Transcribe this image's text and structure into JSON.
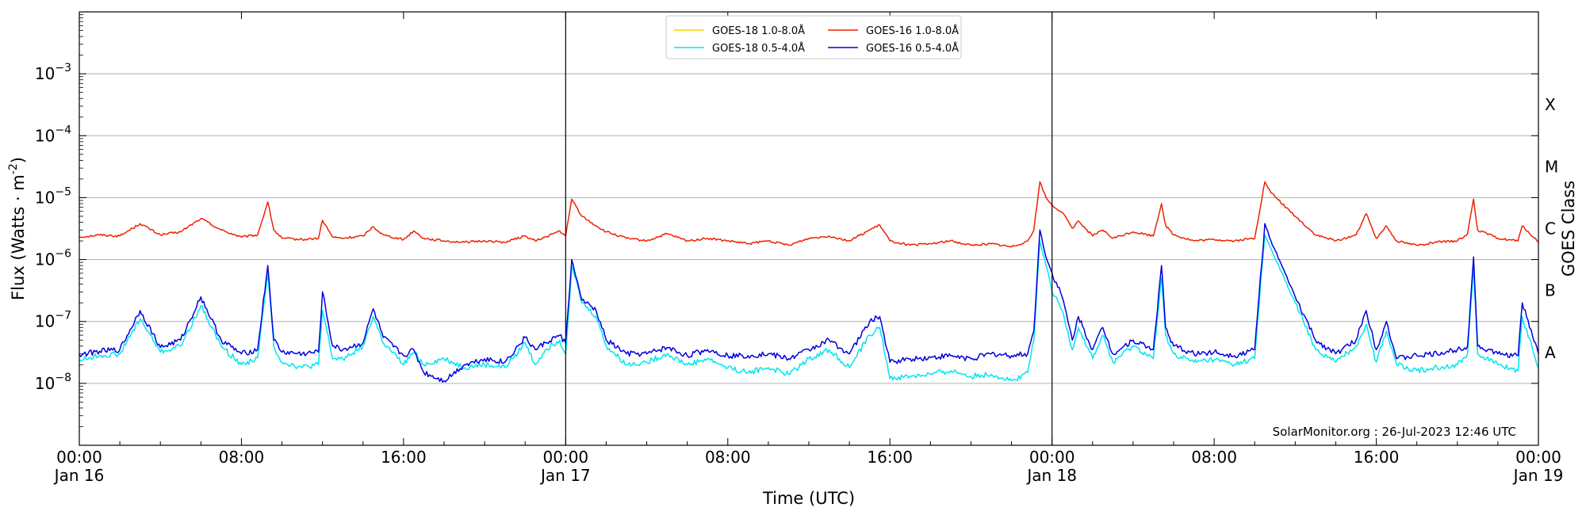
{
  "chart_data": {
    "type": "line",
    "title": "",
    "xlabel": "Time (UTC)",
    "ylabel": "Flux (Watts · m",
    "ylabel_sup": "-2",
    "ylabel_close": ")",
    "y2label": "GOES Class",
    "yscale": "log",
    "xlim": [
      0,
      72
    ],
    "ylim_exp": [
      -9,
      -2
    ],
    "grid": "horizontal",
    "legend_position": "top-center",
    "x_ticks": [
      {
        "x": 0,
        "time": "00:00",
        "day": "Jan 16"
      },
      {
        "x": 8,
        "time": "08:00",
        "day": ""
      },
      {
        "x": 16,
        "time": "16:00",
        "day": ""
      },
      {
        "x": 24,
        "time": "00:00",
        "day": "Jan 17"
      },
      {
        "x": 32,
        "time": "08:00",
        "day": ""
      },
      {
        "x": 40,
        "time": "16:00",
        "day": ""
      },
      {
        "x": 48,
        "time": "00:00",
        "day": "Jan 18"
      },
      {
        "x": 56,
        "time": "08:00",
        "day": ""
      },
      {
        "x": 64,
        "time": "16:00",
        "day": ""
      },
      {
        "x": 72,
        "time": "00:00",
        "day": "Jan 19"
      }
    ],
    "y_ticks": [
      {
        "exp": -8,
        "base": "10",
        "sup": "−8"
      },
      {
        "exp": -7,
        "base": "10",
        "sup": "−7"
      },
      {
        "exp": -6,
        "base": "10",
        "sup": "−6"
      },
      {
        "exp": -5,
        "base": "10",
        "sup": "−5"
      },
      {
        "exp": -4,
        "base": "10",
        "sup": "−4"
      },
      {
        "exp": -3,
        "base": "10",
        "sup": "−3"
      }
    ],
    "class_labels": [
      {
        "exp": -3.5,
        "label": "X"
      },
      {
        "exp": -4.5,
        "label": "M"
      },
      {
        "exp": -5.5,
        "label": "C"
      },
      {
        "exp": -6.5,
        "label": "B"
      },
      {
        "exp": -7.5,
        "label": "A"
      }
    ],
    "day_dividers": [
      24,
      48
    ],
    "legend": [
      {
        "name": "GOES-18 1.0-8.0Å",
        "color": "#f2d000"
      },
      {
        "name": "GOES-18 0.5-4.0Å",
        "color": "#00e5ee"
      },
      {
        "name": "GOES-16 1.0-8.0Å",
        "color": "#ee2200"
      },
      {
        "name": "GOES-16 0.5-4.0Å",
        "color": "#0000e0"
      }
    ],
    "annotation": "SolarMonitor.org : 26-Jul-2023 12:46 UTC",
    "series": [
      {
        "name": "GOES-16 1.0-8.0Å",
        "color": "#ee2200",
        "x": [
          0,
          1,
          2,
          3,
          4,
          5,
          6,
          7,
          8,
          8.8,
          9.3,
          9.6,
          10,
          11,
          11.8,
          12,
          12.5,
          13,
          14,
          14.5,
          15,
          16,
          16.5,
          17,
          18,
          19,
          20,
          21,
          22,
          22.5,
          23,
          23.7,
          24,
          24.3,
          24.8,
          25.5,
          26,
          27,
          28,
          29,
          30,
          31,
          32,
          33,
          34,
          35,
          36,
          37,
          38,
          39,
          39.5,
          40,
          41,
          42,
          43,
          44,
          45,
          46,
          46.8,
          47.1,
          47.4,
          47.7,
          48,
          48.5,
          49,
          49.3,
          50,
          50.5,
          51,
          52,
          53,
          53.4,
          53.6,
          54,
          55,
          56,
          57,
          58,
          58.5,
          58.8,
          60,
          61,
          62,
          63,
          63.5,
          64,
          64.5,
          65,
          66,
          67,
          68,
          68.5,
          68.8,
          69,
          70,
          71,
          71.2,
          72
        ],
        "y": [
          2.3e-06,
          2.5e-06,
          2.4e-06,
          3.8e-06,
          2.5e-06,
          2.8e-06,
          4.6e-06,
          3e-06,
          2.3e-06,
          2.5e-06,
          8.5e-06,
          3e-06,
          2.2e-06,
          2.1e-06,
          2.2e-06,
          4.3e-06,
          2.3e-06,
          2.2e-06,
          2.4e-06,
          3.4e-06,
          2.5e-06,
          2.1e-06,
          2.9e-06,
          2.2e-06,
          2e-06,
          1.9e-06,
          2e-06,
          1.9e-06,
          2.4e-06,
          2e-06,
          2.3e-06,
          2.9e-06,
          2.4e-06,
          9.5e-06,
          5e-06,
          3.5e-06,
          2.8e-06,
          2.2e-06,
          2e-06,
          2.6e-06,
          2e-06,
          2.2e-06,
          2e-06,
          1.8e-06,
          2e-06,
          1.7e-06,
          2.2e-06,
          2.4e-06,
          2e-06,
          3e-06,
          3.6e-06,
          2e-06,
          1.7e-06,
          1.8e-06,
          2e-06,
          1.7e-06,
          1.8e-06,
          1.6e-06,
          2e-06,
          3e-06,
          1.8e-05,
          1e-05,
          7.5e-06,
          5.8e-06,
          3.2e-06,
          4.2e-06,
          2.4e-06,
          3e-06,
          2.2e-06,
          2.8e-06,
          2.4e-06,
          8e-06,
          3.6e-06,
          2.5e-06,
          2e-06,
          2.1e-06,
          2e-06,
          2.2e-06,
          1.8e-05,
          1.2e-05,
          5e-06,
          2.5e-06,
          2e-06,
          2.5e-06,
          5.5e-06,
          2.2e-06,
          3.5e-06,
          2e-06,
          1.7e-06,
          1.9e-06,
          2e-06,
          2.6e-06,
          9.5e-06,
          3e-06,
          2.2e-06,
          2e-06,
          3.5e-06,
          1.9e-06
        ]
      },
      {
        "name": "GOES-18 0.5-4.0Å",
        "color": "#00e5ee",
        "x": [
          0,
          1,
          2,
          3,
          4,
          5,
          6,
          7,
          8,
          8.8,
          9.3,
          9.6,
          10,
          11,
          11.8,
          12,
          12.5,
          13,
          14,
          14.5,
          15,
          16,
          16.5,
          17,
          18,
          19,
          20,
          21,
          22,
          22.5,
          23,
          23.7,
          24,
          24.3,
          24.8,
          25.5,
          26,
          27,
          28,
          29,
          30,
          31,
          32,
          33,
          34,
          35,
          36,
          37,
          38,
          39,
          39.5,
          40,
          41,
          42,
          43,
          44,
          45,
          46,
          46.8,
          47.1,
          47.4,
          47.7,
          48,
          48.5,
          49,
          49.3,
          50,
          50.5,
          51,
          52,
          53,
          53.4,
          53.6,
          54,
          55,
          56,
          57,
          58,
          58.5,
          58.8,
          60,
          61,
          62,
          63,
          63.5,
          64,
          64.5,
          65,
          66,
          67,
          68,
          68.5,
          68.8,
          69,
          70,
          71,
          71.2,
          72
        ],
        "y": [
          2.4e-08,
          2.8e-08,
          3e-08,
          1.1e-07,
          3.2e-08,
          4e-08,
          1.8e-07,
          4e-08,
          2e-08,
          2.6e-08,
          6e-07,
          4e-08,
          2.2e-08,
          1.8e-08,
          2e-08,
          1.5e-07,
          2.5e-08,
          2.5e-08,
          4e-08,
          1.2e-07,
          4.5e-08,
          2e-08,
          3.2e-08,
          2e-08,
          2.5e-08,
          1.8e-08,
          2e-08,
          1.8e-08,
          4.5e-08,
          2e-08,
          3.5e-08,
          5e-08,
          3e-08,
          8e-07,
          2e-07,
          1.2e-07,
          4e-08,
          2e-08,
          2.2e-08,
          3e-08,
          2e-08,
          2.5e-08,
          1.8e-08,
          1.5e-08,
          1.8e-08,
          1.4e-08,
          2.5e-08,
          3.5e-08,
          1.8e-08,
          6e-08,
          8e-08,
          1.2e-08,
          1.3e-08,
          1.4e-08,
          1.6e-08,
          1.3e-08,
          1.4e-08,
          1.1e-08,
          1.5e-08,
          5e-08,
          2e-06,
          8e-07,
          3e-07,
          1.5e-07,
          3.5e-08,
          8e-08,
          2.5e-08,
          6e-08,
          2.2e-08,
          4e-08,
          2.5e-08,
          5e-07,
          6e-08,
          3e-08,
          2.2e-08,
          2.4e-08,
          2e-08,
          2.5e-08,
          2.5e-06,
          1.5e-06,
          2e-07,
          3.5e-08,
          2.2e-08,
          4e-08,
          9e-08,
          2.2e-08,
          7e-08,
          2e-08,
          1.6e-08,
          1.8e-08,
          2e-08,
          3e-08,
          8e-07,
          3e-08,
          2e-08,
          1.6e-08,
          1.2e-07,
          1.8e-08
        ]
      },
      {
        "name": "GOES-16 0.5-4.0Å",
        "color": "#0000e0",
        "x": [
          0,
          1,
          2,
          3,
          4,
          5,
          6,
          7,
          8,
          8.8,
          9.3,
          9.6,
          10,
          11,
          11.8,
          12,
          12.5,
          13,
          14,
          14.5,
          15,
          16,
          16.5,
          17,
          18,
          19,
          20,
          21,
          22,
          22.5,
          23,
          23.7,
          24,
          24.3,
          24.8,
          25.5,
          26,
          27,
          28,
          29,
          30,
          31,
          32,
          33,
          34,
          35,
          36,
          37,
          38,
          39,
          39.5,
          40,
          41,
          42,
          43,
          44,
          45,
          46,
          46.8,
          47.1,
          47.4,
          47.7,
          48,
          48.5,
          49,
          49.3,
          50,
          50.5,
          51,
          52,
          53,
          53.4,
          53.6,
          54,
          55,
          56,
          57,
          58,
          58.5,
          58.8,
          60,
          61,
          62,
          63,
          63.5,
          64,
          64.5,
          65,
          66,
          67,
          68,
          68.5,
          68.8,
          69,
          70,
          71,
          71.2,
          72
        ],
        "y": [
          2.9e-08,
          3.3e-08,
          3.5e-08,
          1.5e-07,
          3.8e-08,
          5e-08,
          2.5e-07,
          5e-08,
          3e-08,
          3.5e-08,
          8e-07,
          5e-08,
          3.2e-08,
          3e-08,
          3.2e-08,
          3e-07,
          4e-08,
          3.5e-08,
          4.5e-08,
          1.6e-07,
          5.5e-08,
          2.8e-08,
          3.5e-08,
          1.5e-08,
          1.1e-08,
          2e-08,
          2.5e-08,
          2.2e-08,
          5.5e-08,
          3.5e-08,
          4.5e-08,
          6e-08,
          4.5e-08,
          1e-06,
          2.2e-07,
          1.5e-07,
          5e-08,
          3e-08,
          3e-08,
          3.8e-08,
          2.8e-08,
          3.5e-08,
          2.8e-08,
          2.8e-08,
          3e-08,
          2.5e-08,
          3.5e-08,
          5e-08,
          3e-08,
          1e-07,
          1.2e-07,
          2.2e-08,
          2.5e-08,
          2.6e-08,
          2.8e-08,
          2.5e-08,
          3e-08,
          2.8e-08,
          3e-08,
          7e-08,
          3e-06,
          1.1e-06,
          6e-07,
          2.5e-07,
          5e-08,
          1.2e-07,
          3.5e-08,
          8e-08,
          3e-08,
          5e-08,
          3.5e-08,
          8e-07,
          8e-08,
          4e-08,
          3e-08,
          3.2e-08,
          2.8e-08,
          3.5e-08,
          3.8e-06,
          2e-06,
          2.5e-07,
          5e-08,
          3e-08,
          5e-08,
          1.5e-07,
          3.5e-08,
          1e-07,
          2.5e-08,
          2.8e-08,
          3e-08,
          3.5e-08,
          4e-08,
          1.1e-06,
          4e-08,
          3e-08,
          2.8e-08,
          2e-07,
          3e-08
        ]
      }
    ]
  }
}
